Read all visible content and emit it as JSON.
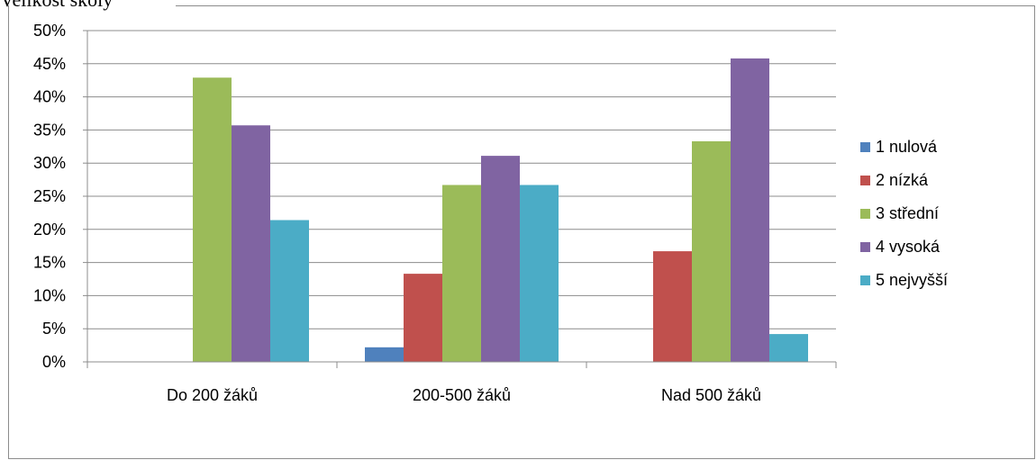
{
  "page_title": "Velikost školy",
  "chart_data": {
    "type": "bar",
    "title": "",
    "xlabel": "",
    "ylabel": "",
    "categories": [
      "Do 200 žáků",
      "200-500 žáků",
      "Nad 500 žáků"
    ],
    "ylim": [
      0,
      50
    ],
    "yticks": [
      0,
      5,
      10,
      15,
      20,
      25,
      30,
      35,
      40,
      45,
      50
    ],
    "ytick_labels": [
      "0%",
      "5%",
      "10%",
      "15%",
      "20%",
      "25%",
      "30%",
      "35%",
      "40%",
      "45%",
      "50%"
    ],
    "grid": true,
    "legend_position": "right",
    "series": [
      {
        "name": "1 nulová",
        "color": "#4f81bd",
        "values": [
          0,
          2.2,
          0
        ]
      },
      {
        "name": "2 nízká",
        "color": "#c0504d",
        "values": [
          0,
          13.3,
          16.7
        ]
      },
      {
        "name": "3 střední",
        "color": "#9bbb59",
        "values": [
          42.9,
          26.7,
          33.3
        ]
      },
      {
        "name": "4 vysoká",
        "color": "#8064a2",
        "values": [
          35.7,
          31.1,
          45.8
        ]
      },
      {
        "name": "5 nejvyšší",
        "color": "#4bacc6",
        "values": [
          21.4,
          26.7,
          4.2
        ]
      }
    ]
  }
}
